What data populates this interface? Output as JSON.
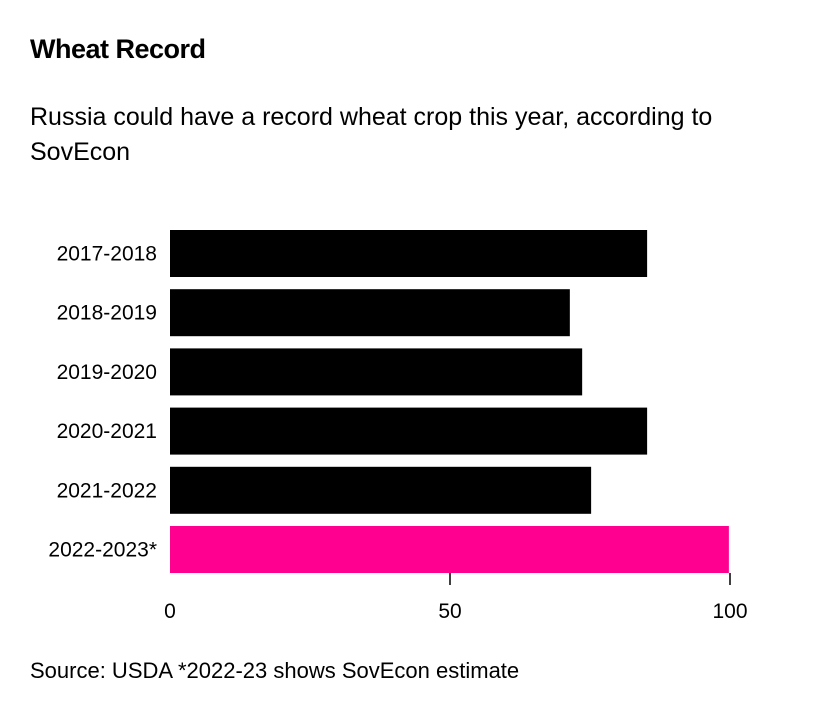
{
  "header": {
    "title": "Wheat Record",
    "subtitle": "Russia could have a record wheat crop this year, according to SovEcon"
  },
  "footer": {
    "source": "Source: USDA *2022-23 shows SovEcon estimate"
  },
  "colors": {
    "default_bar": "#000000",
    "highlight_bar": "#ff0090"
  },
  "chart_data": {
    "type": "bar",
    "orientation": "horizontal",
    "title": "Wheat Record",
    "subtitle": "Russia could have a record wheat crop this year, according to SovEcon",
    "xlabel": "",
    "ylabel": "",
    "categories": [
      "2017-2018",
      "2018-2019",
      "2019-2020",
      "2020-2021",
      "2021-2022",
      "2022-2023*"
    ],
    "values": [
      85.2,
      71.4,
      73.6,
      85.2,
      75.2,
      99.8
    ],
    "highlight": [
      false,
      false,
      false,
      false,
      false,
      true
    ],
    "xlim": [
      0,
      100
    ],
    "xticks": [
      0,
      50,
      100
    ],
    "grid": false,
    "legend": "none",
    "note": "*2022-23 shows SovEcon estimate",
    "source": "USDA"
  }
}
